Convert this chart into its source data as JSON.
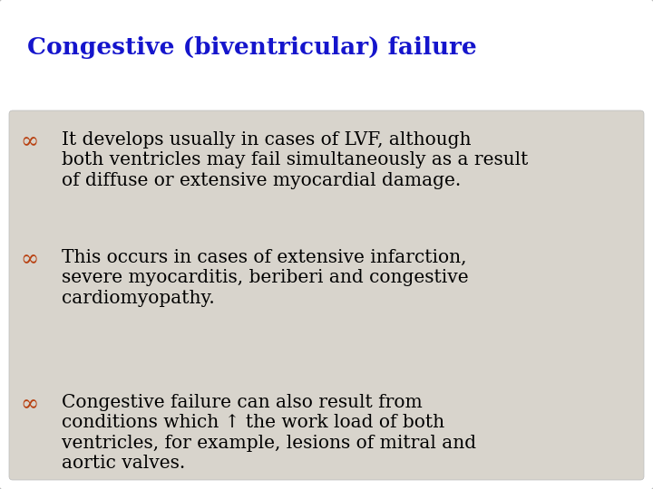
{
  "title": "Congestive (biventricular) failure",
  "title_color": "#1515cc",
  "title_fontsize": 19,
  "title_bold": true,
  "bg_color": "#ffffff",
  "content_box_color": "#d8d4cc",
  "bullet_color": "#b84010",
  "text_color": "#000000",
  "bullet_char": "∞",
  "bullet_lines": [
    [
      "It develops usually in cases of LVF, although",
      "both ventricles may fail simultaneously as a result",
      "of diffuse or extensive myocardial damage."
    ],
    [
      "This occurs in cases of extensive infarction,",
      "severe myocarditis, beriberi and congestive",
      "cardiomyopathy."
    ],
    [
      "Congestive failure can also result from",
      "conditions which ↑ the work load of both",
      "ventricles, for example, lesions of mitral and",
      "aortic valves."
    ]
  ],
  "text_fontsize": 14.5,
  "figwidth": 7.2,
  "figheight": 5.4,
  "dpi": 100
}
